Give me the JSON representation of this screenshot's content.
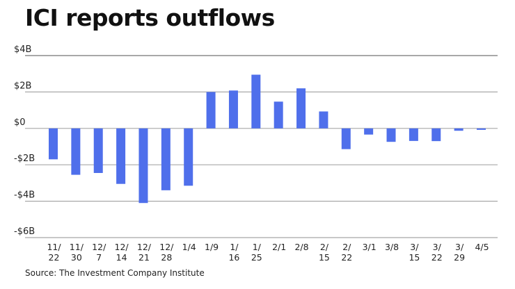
{
  "chart_data": {
    "type": "bar",
    "title": "ICI reports outflows",
    "xlabel": "",
    "ylabel": "",
    "source": "Source: The Investment Company Institute",
    "ylim": [
      -6,
      4
    ],
    "y_unit": "billions of dollars",
    "y_ticks": [
      4,
      2,
      0,
      -2,
      -4,
      -6
    ],
    "y_tick_labels": [
      "$4B",
      "$2B",
      "$0",
      "-$2B",
      "-$4B",
      "-$6B"
    ],
    "grid": true,
    "categories": [
      [
        "11/",
        "22"
      ],
      [
        "11/",
        "30"
      ],
      [
        "12/",
        "7"
      ],
      [
        "12/",
        "14"
      ],
      [
        "12/",
        "21"
      ],
      [
        "12/",
        "28"
      ],
      [
        "1/4"
      ],
      [
        "1/9"
      ],
      [
        "1/",
        "16"
      ],
      [
        "1/",
        "25"
      ],
      [
        "2/1"
      ],
      [
        "2/8"
      ],
      [
        "2/",
        "15"
      ],
      [
        "2/",
        "22"
      ],
      [
        "3/1"
      ],
      [
        "3/8"
      ],
      [
        "3/",
        "15"
      ],
      [
        "3/",
        "22"
      ],
      [
        "3/",
        "29"
      ],
      [
        "4/5"
      ]
    ],
    "values": [
      -1.7,
      -2.55,
      -2.45,
      -3.05,
      -4.1,
      -3.4,
      -3.15,
      2.0,
      2.08,
      2.95,
      1.47,
      2.2,
      0.93,
      -1.14,
      -0.34,
      -0.74,
      -0.69,
      -0.7,
      -0.13,
      -0.08
    ],
    "bar_color": "#4F6FEB",
    "grid_color": "#A8A8A8"
  }
}
